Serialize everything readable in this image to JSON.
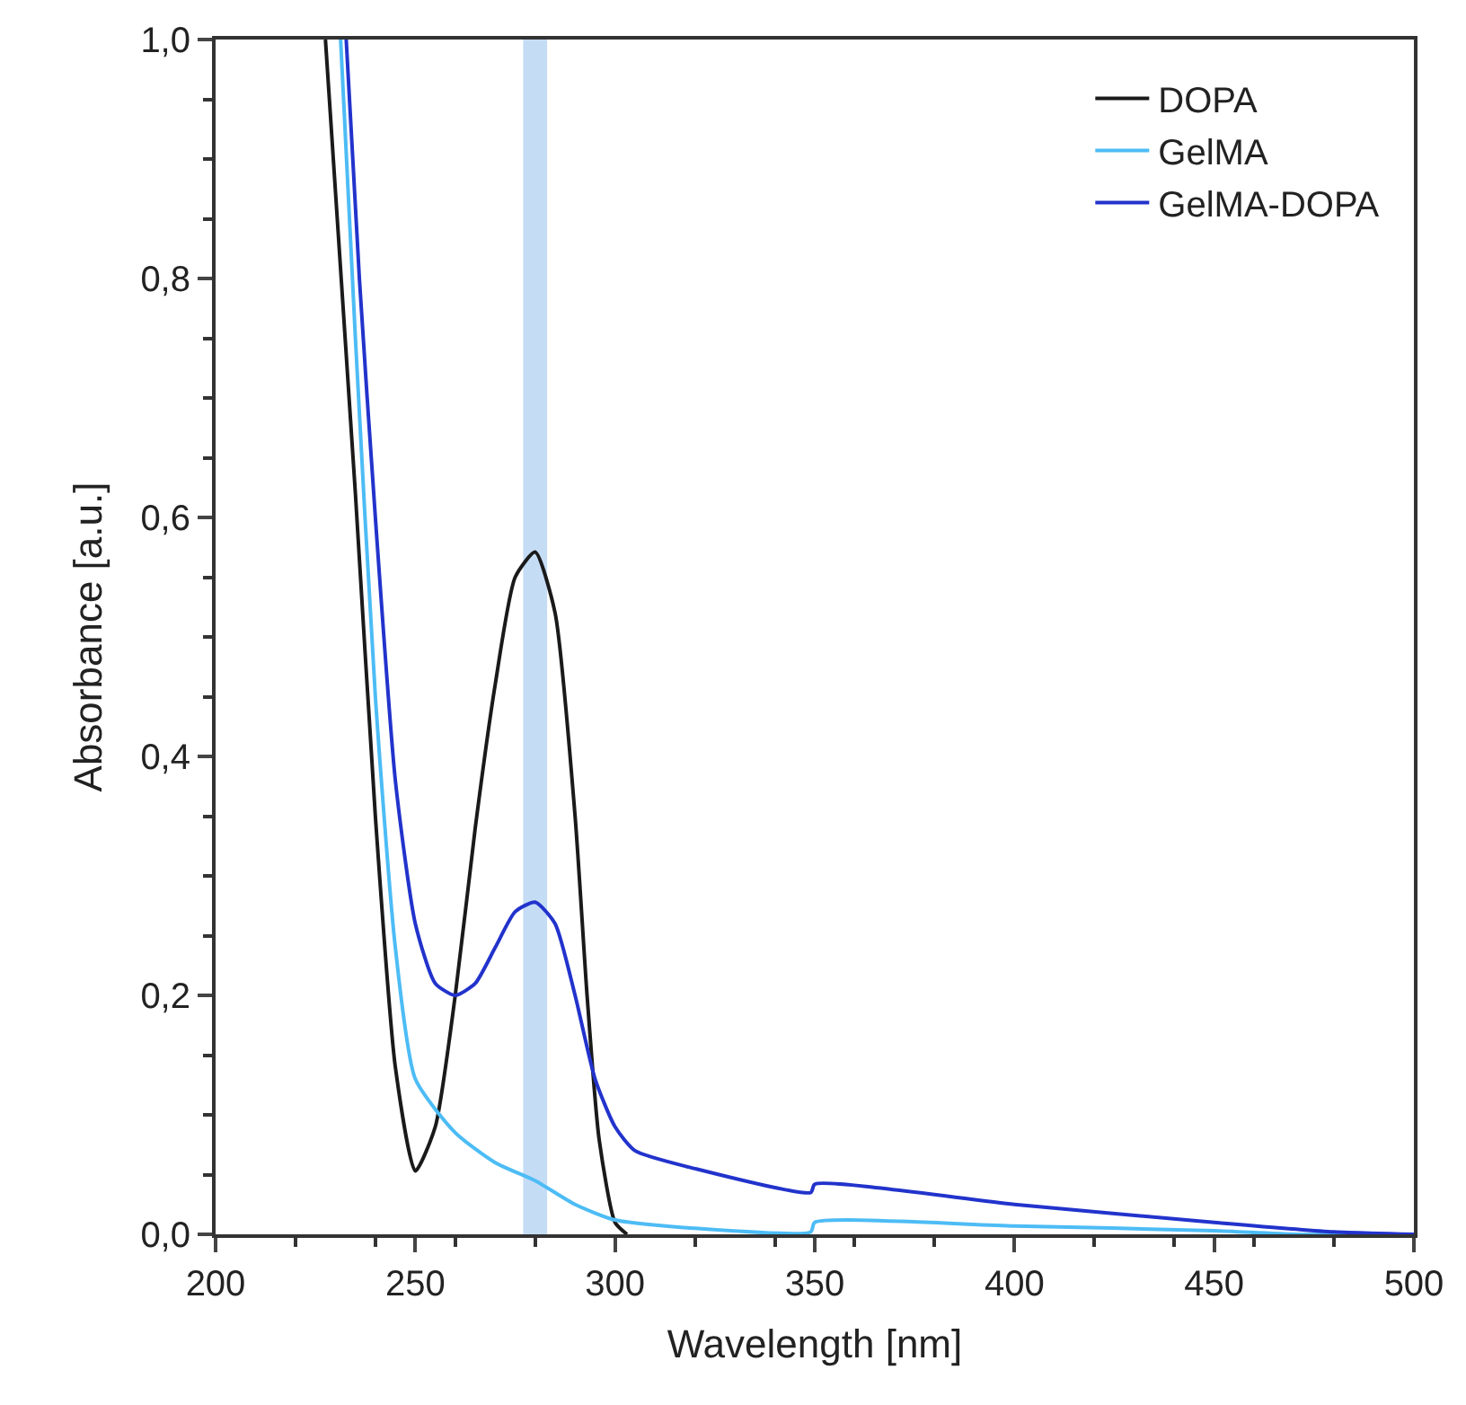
{
  "chart_data": {
    "type": "line",
    "xlabel": "Wavelength [nm]",
    "ylabel": "Absorbance [a.u.]",
    "xlim": [
      200,
      500
    ],
    "xticks": [
      200,
      250,
      300,
      350,
      400,
      450,
      500
    ],
    "ylim": [
      0,
      1
    ],
    "yticks": [
      {
        "value": 0,
        "label": "0,0"
      },
      {
        "value": 0.2,
        "label": "0,2"
      },
      {
        "value": 0.4,
        "label": "0,4"
      },
      {
        "value": 0.6,
        "label": "0,6"
      },
      {
        "value": 0.8,
        "label": "0,8"
      },
      {
        "value": 1,
        "label": "1,0"
      }
    ],
    "grid": false,
    "legend": "top right",
    "marker": "none",
    "line_style": "solid",
    "bands": [
      {
        "axis": "x",
        "from": 277,
        "to": 283,
        "color": "#c5dcf5"
      }
    ],
    "series": [
      {
        "name": "DOPA",
        "color": "#1a1a1a",
        "x": [
          227.5,
          235,
          240,
          245,
          250,
          255,
          260,
          265,
          270,
          275,
          280,
          285,
          290,
          293,
          296,
          300,
          303
        ],
        "values": [
          1.0,
          0.62,
          0.35,
          0.14,
          0.053,
          0.09,
          0.2,
          0.34,
          0.46,
          0.55,
          0.571,
          0.52,
          0.35,
          0.2,
          0.08,
          0.01,
          0.0
        ]
      },
      {
        "name": "GelMA",
        "color": "#4dbcf5",
        "x": [
          231.3,
          235,
          240,
          245,
          250,
          260,
          270,
          280,
          290,
          300,
          320,
          349,
          350,
          400,
          450,
          470,
          500
        ],
        "values": [
          1.0,
          0.75,
          0.45,
          0.24,
          0.13,
          0.085,
          0.06,
          0.045,
          0.025,
          0.012,
          0.005,
          0.002,
          0.01,
          0.007,
          0.003,
          0.0,
          0.0
        ]
      },
      {
        "name": "GelMA-DOPA",
        "color": "#2233cc",
        "x": [
          232.7,
          236,
          240,
          245,
          250,
          255,
          260,
          265,
          270,
          275,
          280,
          285,
          290,
          295,
          300,
          305,
          320,
          349,
          350,
          400,
          450,
          480,
          500
        ],
        "values": [
          1.0,
          0.8,
          0.6,
          0.38,
          0.26,
          0.21,
          0.2,
          0.21,
          0.24,
          0.27,
          0.278,
          0.26,
          0.2,
          0.13,
          0.09,
          0.07,
          0.055,
          0.035,
          0.042,
          0.025,
          0.01,
          0.002,
          0.0
        ]
      }
    ]
  }
}
